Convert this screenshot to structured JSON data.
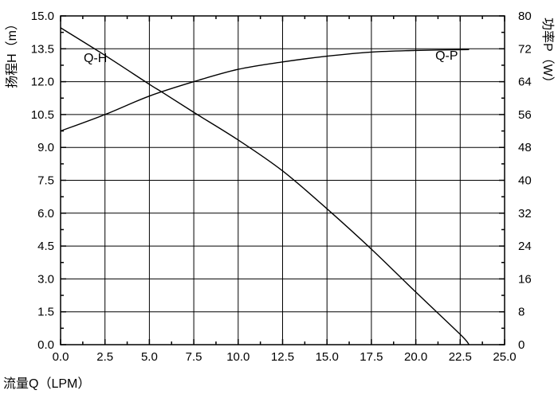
{
  "chart_data": {
    "type": "line",
    "title": "",
    "xlabel": "流量Q（LPM）",
    "ylabel_left": "扬程H（m）",
    "ylabel_right": "功率P（W）",
    "xlim": [
      0,
      25
    ],
    "ylim_left": [
      0,
      15
    ],
    "ylim_right": [
      0,
      80
    ],
    "x_ticks": [
      "0.0",
      "2.5",
      "5.0",
      "7.5",
      "10.0",
      "12.5",
      "15.0",
      "17.5",
      "20.0",
      "22.5",
      "25.0"
    ],
    "y_left_ticks": [
      "0.0",
      "1.5",
      "3.0",
      "4.5",
      "6.0",
      "7.5",
      "9.0",
      "10.5",
      "12.0",
      "13.5",
      "15.0"
    ],
    "y_right_ticks": [
      "0",
      "8",
      "16",
      "24",
      "32",
      "40",
      "48",
      "56",
      "64",
      "72",
      "80"
    ],
    "grid": true,
    "line_color": "#000000",
    "series": [
      {
        "name": "Q-H",
        "axis": "left",
        "x": [
          0,
          2.5,
          5,
          5.7,
          7.5,
          10,
          12.5,
          15,
          17.5,
          20,
          22.5,
          23.0
        ],
        "y": [
          14.46,
          13.2,
          11.88,
          11.53,
          10.6,
          9.34,
          7.93,
          6.2,
          4.36,
          2.4,
          0.47,
          0
        ]
      },
      {
        "name": "Q-P",
        "axis": "right",
        "x": [
          0,
          2.5,
          5,
          7.5,
          10,
          12.5,
          15,
          17.5,
          20,
          23.0
        ],
        "y": [
          52.0,
          56.0,
          60.5,
          64.0,
          67.0,
          68.8,
          70.2,
          71.2,
          71.6,
          71.8
        ]
      }
    ],
    "annotations": [
      {
        "text": "Q-H",
        "x": 1.3,
        "y_left": 12.9
      },
      {
        "text": "Q-P",
        "x": 21.1,
        "y_left": 13.0
      }
    ]
  }
}
